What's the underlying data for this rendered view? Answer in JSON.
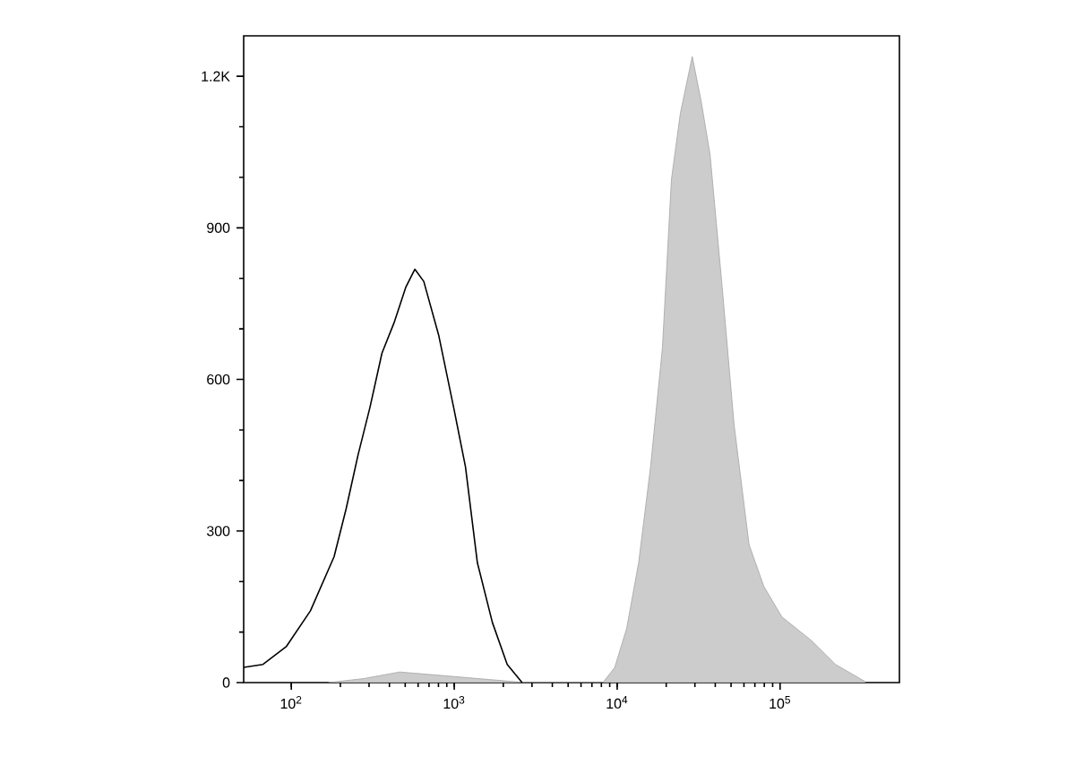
{
  "chart_data": {
    "type": "line",
    "log": "x",
    "xlim": [
      51,
      540000
    ],
    "ylim": [
      0,
      1280
    ],
    "xticks": [
      {
        "value": 100,
        "label": "10$^{2}$"
      },
      {
        "value": 1000,
        "label": "10$^{3}$"
      },
      {
        "value": 10000,
        "label": "10$^{4}$"
      },
      {
        "value": 100000,
        "label": "10$^{5}$"
      }
    ],
    "yticks": [
      0,
      300,
      600,
      900,
      {
        "value": 1200,
        "label": "1.2K"
      }
    ],
    "series": [
      {
        "type": "area",
        "color": "#cccccc",
        "x": [
          169,
          279,
          463,
          838,
          1644,
          2724,
          8170,
          9660,
          11430,
          13540,
          16030,
          18970,
          21530,
          24430,
          28900,
          32800,
          37200,
          44100,
          52200,
          64500,
          79600,
          102600,
          156000,
          218600,
          333000
        ],
        "values": [
          0,
          8,
          21,
          14,
          6,
          0,
          0,
          30,
          107,
          237,
          427,
          664,
          996,
          1127,
          1239,
          1150,
          1044,
          783,
          510,
          273,
          190,
          130,
          83,
          36,
          2
        ]
      },
      {
        "color": "#000000",
        "x": [
          51,
          67,
          93,
          131,
          183,
          217,
          257,
          304,
          360,
          427,
          505,
          573,
          650,
          802,
          991,
          1172,
          1387,
          1714,
          2114,
          2610
        ],
        "values": [
          30,
          36,
          71,
          142,
          249,
          344,
          451,
          545,
          652,
          712,
          783,
          818,
          794,
          688,
          545,
          427,
          237,
          119,
          36,
          0
        ]
      }
    ]
  }
}
